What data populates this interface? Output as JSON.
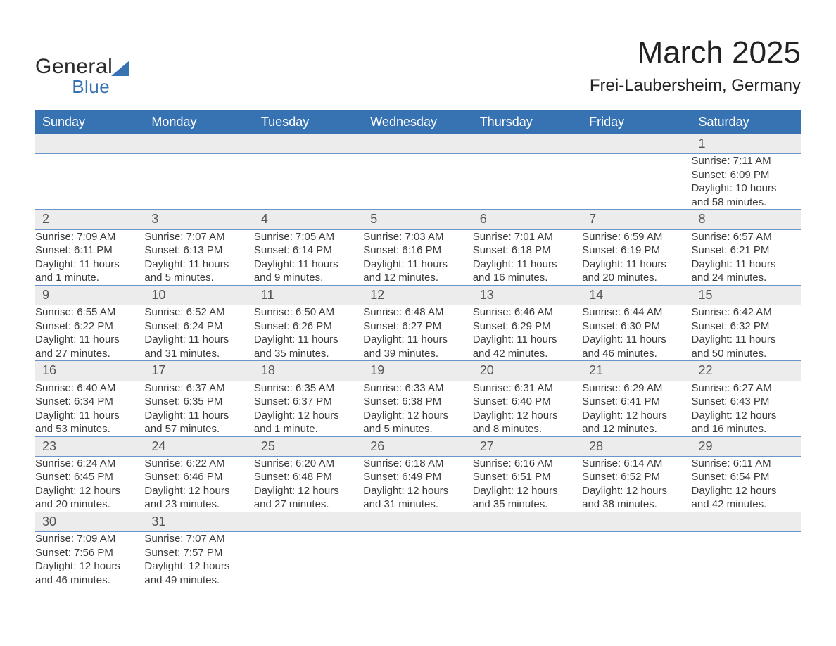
{
  "brand": {
    "name1": "General",
    "name2": "Blue",
    "accent_color": "#3773b3"
  },
  "title": "March 2025",
  "location": "Frei-Laubersheim, Germany",
  "colors": {
    "header_bg": "#3773b3",
    "header_text": "#ffffff",
    "daynum_bg": "#ececec",
    "row_border": "#6a95c8",
    "body_text": "#3a3a3a",
    "background": "#ffffff"
  },
  "layout": {
    "columns": 7,
    "column_width_pct": 14.28,
    "fontsize_title": 44,
    "fontsize_location": 24,
    "fontsize_dayhead": 18,
    "fontsize_daynum": 18,
    "fontsize_cell": 15
  },
  "day_headers": [
    "Sunday",
    "Monday",
    "Tuesday",
    "Wednesday",
    "Thursday",
    "Friday",
    "Saturday"
  ],
  "weeks": [
    [
      null,
      null,
      null,
      null,
      null,
      null,
      {
        "n": "1",
        "sunrise": "Sunrise: 7:11 AM",
        "sunset": "Sunset: 6:09 PM",
        "d1": "Daylight: 10 hours",
        "d2": "and 58 minutes."
      }
    ],
    [
      {
        "n": "2",
        "sunrise": "Sunrise: 7:09 AM",
        "sunset": "Sunset: 6:11 PM",
        "d1": "Daylight: 11 hours",
        "d2": "and 1 minute."
      },
      {
        "n": "3",
        "sunrise": "Sunrise: 7:07 AM",
        "sunset": "Sunset: 6:13 PM",
        "d1": "Daylight: 11 hours",
        "d2": "and 5 minutes."
      },
      {
        "n": "4",
        "sunrise": "Sunrise: 7:05 AM",
        "sunset": "Sunset: 6:14 PM",
        "d1": "Daylight: 11 hours",
        "d2": "and 9 minutes."
      },
      {
        "n": "5",
        "sunrise": "Sunrise: 7:03 AM",
        "sunset": "Sunset: 6:16 PM",
        "d1": "Daylight: 11 hours",
        "d2": "and 12 minutes."
      },
      {
        "n": "6",
        "sunrise": "Sunrise: 7:01 AM",
        "sunset": "Sunset: 6:18 PM",
        "d1": "Daylight: 11 hours",
        "d2": "and 16 minutes."
      },
      {
        "n": "7",
        "sunrise": "Sunrise: 6:59 AM",
        "sunset": "Sunset: 6:19 PM",
        "d1": "Daylight: 11 hours",
        "d2": "and 20 minutes."
      },
      {
        "n": "8",
        "sunrise": "Sunrise: 6:57 AM",
        "sunset": "Sunset: 6:21 PM",
        "d1": "Daylight: 11 hours",
        "d2": "and 24 minutes."
      }
    ],
    [
      {
        "n": "9",
        "sunrise": "Sunrise: 6:55 AM",
        "sunset": "Sunset: 6:22 PM",
        "d1": "Daylight: 11 hours",
        "d2": "and 27 minutes."
      },
      {
        "n": "10",
        "sunrise": "Sunrise: 6:52 AM",
        "sunset": "Sunset: 6:24 PM",
        "d1": "Daylight: 11 hours",
        "d2": "and 31 minutes."
      },
      {
        "n": "11",
        "sunrise": "Sunrise: 6:50 AM",
        "sunset": "Sunset: 6:26 PM",
        "d1": "Daylight: 11 hours",
        "d2": "and 35 minutes."
      },
      {
        "n": "12",
        "sunrise": "Sunrise: 6:48 AM",
        "sunset": "Sunset: 6:27 PM",
        "d1": "Daylight: 11 hours",
        "d2": "and 39 minutes."
      },
      {
        "n": "13",
        "sunrise": "Sunrise: 6:46 AM",
        "sunset": "Sunset: 6:29 PM",
        "d1": "Daylight: 11 hours",
        "d2": "and 42 minutes."
      },
      {
        "n": "14",
        "sunrise": "Sunrise: 6:44 AM",
        "sunset": "Sunset: 6:30 PM",
        "d1": "Daylight: 11 hours",
        "d2": "and 46 minutes."
      },
      {
        "n": "15",
        "sunrise": "Sunrise: 6:42 AM",
        "sunset": "Sunset: 6:32 PM",
        "d1": "Daylight: 11 hours",
        "d2": "and 50 minutes."
      }
    ],
    [
      {
        "n": "16",
        "sunrise": "Sunrise: 6:40 AM",
        "sunset": "Sunset: 6:34 PM",
        "d1": "Daylight: 11 hours",
        "d2": "and 53 minutes."
      },
      {
        "n": "17",
        "sunrise": "Sunrise: 6:37 AM",
        "sunset": "Sunset: 6:35 PM",
        "d1": "Daylight: 11 hours",
        "d2": "and 57 minutes."
      },
      {
        "n": "18",
        "sunrise": "Sunrise: 6:35 AM",
        "sunset": "Sunset: 6:37 PM",
        "d1": "Daylight: 12 hours",
        "d2": "and 1 minute."
      },
      {
        "n": "19",
        "sunrise": "Sunrise: 6:33 AM",
        "sunset": "Sunset: 6:38 PM",
        "d1": "Daylight: 12 hours",
        "d2": "and 5 minutes."
      },
      {
        "n": "20",
        "sunrise": "Sunrise: 6:31 AM",
        "sunset": "Sunset: 6:40 PM",
        "d1": "Daylight: 12 hours",
        "d2": "and 8 minutes."
      },
      {
        "n": "21",
        "sunrise": "Sunrise: 6:29 AM",
        "sunset": "Sunset: 6:41 PM",
        "d1": "Daylight: 12 hours",
        "d2": "and 12 minutes."
      },
      {
        "n": "22",
        "sunrise": "Sunrise: 6:27 AM",
        "sunset": "Sunset: 6:43 PM",
        "d1": "Daylight: 12 hours",
        "d2": "and 16 minutes."
      }
    ],
    [
      {
        "n": "23",
        "sunrise": "Sunrise: 6:24 AM",
        "sunset": "Sunset: 6:45 PM",
        "d1": "Daylight: 12 hours",
        "d2": "and 20 minutes."
      },
      {
        "n": "24",
        "sunrise": "Sunrise: 6:22 AM",
        "sunset": "Sunset: 6:46 PM",
        "d1": "Daylight: 12 hours",
        "d2": "and 23 minutes."
      },
      {
        "n": "25",
        "sunrise": "Sunrise: 6:20 AM",
        "sunset": "Sunset: 6:48 PM",
        "d1": "Daylight: 12 hours",
        "d2": "and 27 minutes."
      },
      {
        "n": "26",
        "sunrise": "Sunrise: 6:18 AM",
        "sunset": "Sunset: 6:49 PM",
        "d1": "Daylight: 12 hours",
        "d2": "and 31 minutes."
      },
      {
        "n": "27",
        "sunrise": "Sunrise: 6:16 AM",
        "sunset": "Sunset: 6:51 PM",
        "d1": "Daylight: 12 hours",
        "d2": "and 35 minutes."
      },
      {
        "n": "28",
        "sunrise": "Sunrise: 6:14 AM",
        "sunset": "Sunset: 6:52 PM",
        "d1": "Daylight: 12 hours",
        "d2": "and 38 minutes."
      },
      {
        "n": "29",
        "sunrise": "Sunrise: 6:11 AM",
        "sunset": "Sunset: 6:54 PM",
        "d1": "Daylight: 12 hours",
        "d2": "and 42 minutes."
      }
    ],
    [
      {
        "n": "30",
        "sunrise": "Sunrise: 7:09 AM",
        "sunset": "Sunset: 7:56 PM",
        "d1": "Daylight: 12 hours",
        "d2": "and 46 minutes."
      },
      {
        "n": "31",
        "sunrise": "Sunrise: 7:07 AM",
        "sunset": "Sunset: 7:57 PM",
        "d1": "Daylight: 12 hours",
        "d2": "and 49 minutes."
      },
      null,
      null,
      null,
      null,
      null
    ]
  ]
}
